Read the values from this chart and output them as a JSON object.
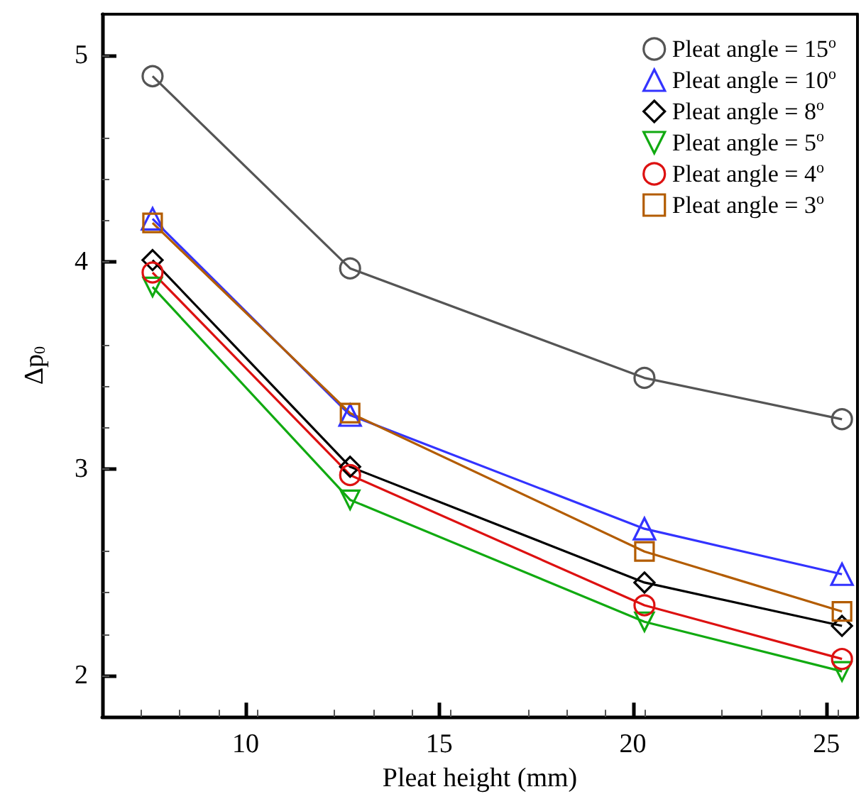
{
  "chart_data": {
    "type": "line",
    "xlabel": "Pleat height (mm)",
    "ylabel": "Δp$_{0}$",
    "x": [
      7.6,
      12.7,
      20.3,
      25.4
    ],
    "xlim": [
      6.3,
      25.8
    ],
    "xticks": [
      10,
      15,
      20,
      25
    ],
    "ylim": [
      1.8,
      5.2
    ],
    "yticks": [
      2,
      3,
      4,
      5
    ],
    "grid": false,
    "legend": "top right",
    "line_style": "solid",
    "series": [
      {
        "name": "Pleat angle = 15$^{o}$",
        "color": "#555555",
        "marker": "circle",
        "values": [
          4.9,
          3.97,
          3.44,
          3.24
        ]
      },
      {
        "name": "Pleat angle = 10$^{o}$",
        "color": "#3333ff",
        "marker": "triangle",
        "values": [
          4.21,
          3.26,
          2.71,
          2.49
        ]
      },
      {
        "name": "Pleat angle = 8$^{o}$",
        "color": "#000000",
        "marker": "diamond",
        "values": [
          4.01,
          3.01,
          2.45,
          2.24
        ]
      },
      {
        "name": "Pleat angle = 5$^{o}$",
        "color": "#11aa11",
        "marker": "triangle-down",
        "values": [
          3.88,
          2.85,
          2.26,
          2.02
        ]
      },
      {
        "name": "Pleat angle = 4$^{o}$",
        "color": "#dd1111",
        "marker": "circle",
        "values": [
          3.95,
          2.97,
          2.34,
          2.08
        ]
      },
      {
        "name": "Pleat angle = 3$^{o}$",
        "color": "#b35c00",
        "marker": "square",
        "values": [
          4.19,
          3.27,
          2.6,
          2.31
        ]
      }
    ]
  }
}
